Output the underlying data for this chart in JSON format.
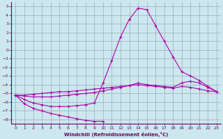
{
  "xlabel": "Windchill (Refroidissement éolien,°C)",
  "bg_color": "#cce8ee",
  "grid_color": "#99aabb",
  "line_color": "#aa00aa",
  "xlim": [
    -0.5,
    23.5
  ],
  "ylim": [
    -8.5,
    5.5
  ],
  "xticks": [
    0,
    1,
    2,
    3,
    4,
    5,
    6,
    7,
    8,
    9,
    10,
    11,
    12,
    13,
    14,
    15,
    16,
    17,
    18,
    19,
    20,
    21,
    22,
    23
  ],
  "yticks": [
    5,
    4,
    3,
    2,
    1,
    0,
    -1,
    -2,
    -3,
    -4,
    -5,
    -6,
    -7,
    -8
  ],
  "line1_x": [
    0,
    1,
    2,
    3,
    4,
    5,
    6,
    7,
    8,
    9,
    10
  ],
  "line1_y": [
    -5.2,
    -6.2,
    -6.7,
    -7.0,
    -7.3,
    -7.5,
    -7.7,
    -7.9,
    -8.1,
    -8.2,
    -8.2
  ],
  "line2_x": [
    0,
    1,
    2,
    3,
    4,
    5,
    6,
    7,
    8,
    9,
    10,
    11,
    12,
    13,
    14,
    15,
    16,
    17,
    18,
    19,
    20,
    21,
    22,
    23
  ],
  "line2_y": [
    -5.2,
    -5.7,
    -6.1,
    -6.3,
    -6.5,
    -6.5,
    -6.5,
    -6.4,
    -6.3,
    -6.1,
    -3.8,
    -1.2,
    1.5,
    3.5,
    4.8,
    4.6,
    2.8,
    1.0,
    -0.8,
    -2.5,
    -3.0,
    -3.5,
    -4.2,
    -4.8
  ],
  "line3_x": [
    0,
    1,
    2,
    3,
    4,
    5,
    6,
    7,
    8,
    9,
    10,
    11,
    12,
    13,
    14,
    15,
    16,
    17,
    18,
    19,
    20,
    21,
    22,
    23
  ],
  "line3_y": [
    -5.2,
    -5.3,
    -5.4,
    -5.4,
    -5.4,
    -5.3,
    -5.2,
    -5.1,
    -5.0,
    -4.9,
    -4.7,
    -4.5,
    -4.3,
    -4.1,
    -3.8,
    -4.0,
    -4.1,
    -4.2,
    -4.3,
    -3.8,
    -3.6,
    -3.8,
    -4.3,
    -4.8
  ],
  "line4_x": [
    0,
    1,
    2,
    3,
    4,
    5,
    6,
    7,
    8,
    9,
    10,
    11,
    12,
    13,
    14,
    15,
    16,
    17,
    18,
    19,
    20,
    21,
    22,
    23
  ],
  "line4_y": [
    -5.2,
    -5.2,
    -5.1,
    -5.0,
    -4.9,
    -4.8,
    -4.8,
    -4.7,
    -4.6,
    -4.5,
    -4.4,
    -4.3,
    -4.2,
    -4.1,
    -4.0,
    -4.1,
    -4.2,
    -4.3,
    -4.4,
    -4.2,
    -4.3,
    -4.5,
    -4.7,
    -4.8
  ]
}
